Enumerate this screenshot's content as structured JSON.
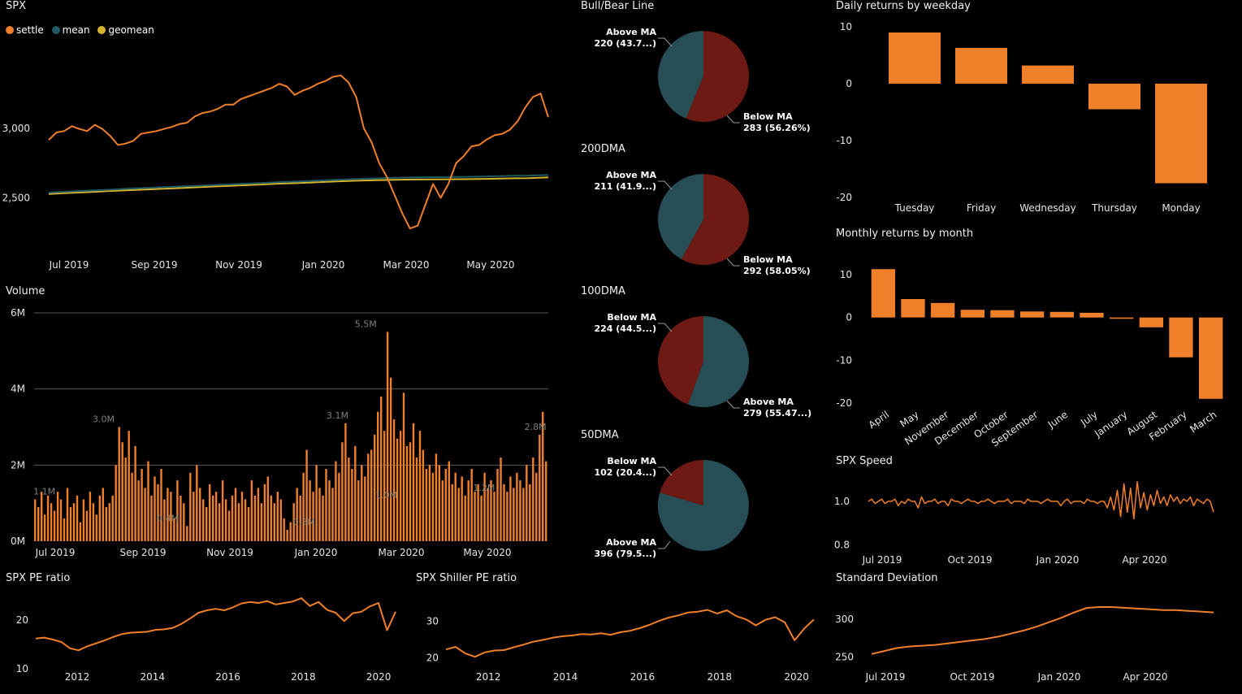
{
  "colors": {
    "orange": "#F07F2A",
    "teal": "#1F5963",
    "gold": "#D4B42C",
    "maroon": "#6E1A14",
    "pieTeal": "#274E55",
    "grid": "#5a5a5a",
    "text": "#e6e6e6",
    "muted": "#7f7f7f"
  },
  "spx": {
    "title": "SPX",
    "legend": [
      {
        "name": "settle",
        "color": "#F07F2A"
      },
      {
        "name": "mean",
        "color": "#1F5963"
      },
      {
        "name": "geomean",
        "color": "#D4B42C"
      }
    ],
    "chart_data": {
      "type": "line",
      "xlabels": [
        "Jul 2019",
        "Sep 2019",
        "Nov 2019",
        "Jan 2020",
        "Mar 2020",
        "May 2020"
      ],
      "ylabels": [
        "3,000",
        "2,500"
      ],
      "yticks": [
        3000,
        2500
      ],
      "ylim": [
        2170,
        3560
      ],
      "series": [
        {
          "name": "settle",
          "values": [
            2917,
            2970,
            2980,
            3015,
            2995,
            2980,
            3025,
            2995,
            2945,
            2880,
            2890,
            2910,
            2960,
            2970,
            2980,
            2995,
            3010,
            3030,
            3040,
            3085,
            3110,
            3120,
            3140,
            3170,
            3170,
            3210,
            3230,
            3250,
            3270,
            3290,
            3320,
            3300,
            3240,
            3270,
            3290,
            3320,
            3340,
            3370,
            3380,
            3330,
            3225,
            3000,
            2900,
            2750,
            2650,
            2520,
            2390,
            2280,
            2300,
            2450,
            2600,
            2500,
            2600,
            2750,
            2800,
            2870,
            2880,
            2920,
            2950,
            2960,
            2990,
            3050,
            3150,
            3225,
            3250,
            3080
          ]
        },
        {
          "name": "mean",
          "values": [
            2538,
            2545,
            2552,
            2558,
            2565,
            2571,
            2577,
            2583,
            2589,
            2595,
            2601,
            2607,
            2613,
            2618,
            2624,
            2630,
            2636,
            2640,
            2645,
            2647,
            2649,
            2650,
            2652,
            2655,
            2658,
            2660,
            2665
          ]
        },
        {
          "name": "geomean",
          "values": [
            2528,
            2535,
            2541,
            2548,
            2554,
            2560,
            2566,
            2572,
            2578,
            2584,
            2590,
            2596,
            2602,
            2607,
            2612,
            2618,
            2623,
            2627,
            2630,
            2632,
            2633,
            2634,
            2635,
            2637,
            2640,
            2642,
            2648
          ]
        }
      ]
    }
  },
  "volume": {
    "title": "Volume",
    "chart_data": {
      "type": "bar",
      "xlabels": [
        "Jul 2019",
        "Sep 2019",
        "Nov 2019",
        "Jan 2020",
        "Mar 2020",
        "May 2020"
      ],
      "ylabels": [
        "6M",
        "4M",
        "2M",
        "0M"
      ],
      "yticks": [
        6,
        4,
        2,
        0
      ],
      "ylim": [
        0,
        6
      ],
      "annotations": [
        {
          "text": "5.5M",
          "value": 5.5,
          "pos": 0.645
        },
        {
          "text": "3.0M",
          "value": 3.0,
          "pos": 0.135
        },
        {
          "text": "3.1M",
          "value": 3.1,
          "pos": 0.59
        },
        {
          "text": "2.8M",
          "value": 2.8,
          "pos": 0.975
        },
        {
          "text": "1.1M",
          "value": 1.1,
          "pos": 0.02
        },
        {
          "text": "0.4M",
          "value": 0.4,
          "pos": 0.26
        },
        {
          "text": "0.3M",
          "value": 0.3,
          "pos": 0.525
        },
        {
          "text": "1.2M",
          "value": 1.2,
          "pos": 0.875
        },
        {
          "text": "1.0M",
          "value": 1.0,
          "pos": 0.685
        }
      ],
      "values": [
        1.1,
        0.9,
        1.3,
        0.7,
        1.2,
        1.0,
        0.8,
        1.3,
        1.1,
        0.6,
        1.4,
        0.9,
        1.0,
        1.2,
        0.5,
        1.1,
        0.8,
        1.3,
        1.0,
        0.7,
        1.2,
        1.4,
        0.9,
        1.0,
        1.2,
        2.0,
        3.0,
        2.6,
        2.2,
        2.9,
        1.8,
        2.5,
        1.6,
        1.9,
        1.4,
        2.1,
        1.2,
        1.7,
        1.5,
        1.9,
        1.1,
        1.4,
        1.3,
        0.6,
        1.6,
        1.2,
        1.0,
        0.4,
        1.8,
        1.3,
        2.0,
        1.4,
        1.1,
        0.9,
        1.5,
        1.2,
        1.3,
        1.0,
        1.6,
        1.1,
        0.8,
        1.2,
        1.4,
        1.0,
        1.3,
        1.1,
        0.9,
        1.6,
        1.2,
        1.4,
        1.0,
        1.5,
        1.7,
        1.2,
        1.0,
        1.3,
        1.1,
        0.6,
        0.3,
        0.5,
        1.0,
        1.4,
        1.2,
        1.8,
        2.4,
        1.6,
        1.3,
        2.0,
        1.4,
        1.2,
        1.9,
        1.6,
        1.4,
        2.1,
        1.8,
        2.6,
        3.1,
        2.2,
        1.9,
        2.5,
        1.6,
        2.0,
        1.7,
        2.3,
        2.4,
        2.8,
        3.4,
        3.8,
        2.9,
        5.5,
        4.3,
        3.2,
        2.7,
        2.9,
        3.9,
        2.5,
        2.6,
        3.1,
        2.2,
        2.9,
        2.4,
        1.9,
        2.0,
        1.8,
        2.3,
        2.0,
        1.6,
        1.9,
        2.1,
        1.5,
        1.8,
        1.4,
        1.7,
        1.2,
        1.6,
        1.9,
        1.3,
        1.5,
        1.2,
        1.8,
        1.4,
        1.6,
        1.3,
        1.9,
        2.2,
        1.5,
        1.3,
        1.7,
        1.4,
        1.8,
        1.6,
        1.4,
        2.0,
        1.5,
        2.2,
        1.8,
        2.8,
        3.4,
        2.1
      ]
    }
  },
  "pies": [
    {
      "title": "Bull/Bear Line",
      "chart_data": {
        "type": "pie",
        "slices": [
          {
            "label": "Above MA",
            "value": 220,
            "text": "220 (43.7...)",
            "color": "#274E55",
            "side": "left"
          },
          {
            "label": "Below MA",
            "value": 283,
            "text": "283 (56.26%)",
            "color": "#6E1A14",
            "side": "right"
          }
        ]
      }
    },
    {
      "title": "200DMA",
      "chart_data": {
        "type": "pie",
        "slices": [
          {
            "label": "Above MA",
            "value": 211,
            "text": "211 (41.9...)",
            "color": "#274E55",
            "side": "left"
          },
          {
            "label": "Below MA",
            "value": 292,
            "text": "292 (58.05%)",
            "color": "#6E1A14",
            "side": "right"
          }
        ]
      }
    },
    {
      "title": "100DMA",
      "chart_data": {
        "type": "pie",
        "slices": [
          {
            "label": "Below MA",
            "value": 224,
            "text": "224 (44.5...)",
            "color": "#6E1A14",
            "side": "left"
          },
          {
            "label": "Above MA",
            "value": 279,
            "text": "279 (55.47...)",
            "color": "#274E55",
            "side": "right"
          }
        ]
      }
    },
    {
      "title": "50DMA",
      "chart_data": {
        "type": "pie",
        "slices": [
          {
            "label": "Below MA",
            "value": 102,
            "text": "102 (20.4...)",
            "color": "#6E1A14",
            "side": "left"
          },
          {
            "label": "Above MA",
            "value": 396,
            "text": "396 (79.5...)",
            "color": "#274E55",
            "side": "left-bottom"
          }
        ]
      }
    }
  ],
  "weekday": {
    "title": "Daily returns by weekday",
    "chart_data": {
      "type": "bar",
      "categories": [
        "Tuesday",
        "Friday",
        "Wednesday",
        "Thursday",
        "Monday"
      ],
      "values": [
        9,
        6.3,
        3.2,
        -4.5,
        -17.5
      ],
      "ylim": [
        -20,
        10
      ],
      "yticks": [
        10,
        0,
        -10,
        -20
      ],
      "ylabels": [
        "10",
        "0",
        "-10",
        "-20"
      ]
    }
  },
  "monthly": {
    "title": "Monthly returns by month",
    "chart_data": {
      "type": "bar",
      "categories": [
        "April",
        "May",
        "November",
        "December",
        "October",
        "September",
        "June",
        "July",
        "January",
        "August",
        "February",
        "March"
      ],
      "values": [
        11.3,
        4.3,
        3.4,
        1.8,
        1.7,
        1.4,
        1.3,
        1.1,
        -0.3,
        -2.3,
        -9.3,
        -19
      ],
      "ylim": [
        -20,
        10
      ],
      "yticks": [
        10,
        0,
        -10,
        -20
      ],
      "ylabels": [
        "10",
        "0",
        "-10",
        "-20"
      ]
    }
  },
  "speed": {
    "title": "SPX Speed",
    "chart_data": {
      "type": "line",
      "xlabels": [
        "Jul 2019",
        "Oct 2019",
        "Jan 2020",
        "Apr 2020"
      ],
      "ylabels": [
        "1.0",
        "0.8"
      ],
      "yticks": [
        1.0,
        0.8
      ],
      "ylim": [
        0.78,
        1.1
      ],
      "values": [
        1.0,
        1.01,
        0.99,
        1.0,
        1.01,
        0.99,
        1.0,
        1.0,
        1.01,
        0.98,
        1.0,
        0.99,
        1.01,
        1.0,
        1.0,
        0.97,
        1.02,
        0.99,
        1.0,
        1.0,
        1.01,
        0.99,
        1.0,
        1.0,
        0.98,
        1.01,
        1.0,
        1.0,
        0.99,
        1.0,
        1.01,
        1.0,
        1.0,
        0.99,
        1.0,
        1.0,
        1.01,
        1.0,
        0.99,
        1.0,
        1.0,
        1.0,
        1.01,
        0.99,
        1.0,
        1.0,
        1.0,
        0.99,
        1.01,
        1.0,
        1.0,
        1.0,
        0.99,
        1.0,
        1.01,
        1.0,
        1.0,
        1.0,
        0.98,
        1.0,
        1.01,
        0.99,
        1.0,
        1.0,
        1.0,
        0.99,
        1.01,
        1.0,
        1.0,
        0.99,
        1.0,
        1.0,
        0.97,
        1.02,
        0.96,
        1.05,
        0.93,
        1.08,
        0.95,
        1.06,
        0.92,
        1.09,
        0.97,
        1.04,
        0.96,
        1.03,
        0.98,
        1.05,
        0.99,
        1.02,
        0.98,
        1.03,
        1.0,
        1.02,
        0.99,
        1.01,
        1.0,
        1.02,
        0.98,
        1.01,
        1.0,
        0.99,
        1.01,
        1.0,
        0.95
      ]
    }
  },
  "pe": {
    "title": "SPX PE ratio",
    "chart_data": {
      "type": "line",
      "xlabels": [
        "2012",
        "2014",
        "2016",
        "2018",
        "2020"
      ],
      "xticks": [
        2012,
        2014,
        2016,
        2018,
        2020
      ],
      "xlim": [
        2010.9,
        2020.45
      ],
      "ylabels": [
        "20",
        "10"
      ],
      "yticks": [
        20,
        10
      ],
      "ylim": [
        8.5,
        26.5
      ],
      "values": [
        16.2,
        16.4,
        16.0,
        15.5,
        14.2,
        13.8,
        14.6,
        15.2,
        15.8,
        16.5,
        17.1,
        17.4,
        17.5,
        17.6,
        18.0,
        18.1,
        18.4,
        19.2,
        20.3,
        21.5,
        22.0,
        22.3,
        22.0,
        22.6,
        23.4,
        23.7,
        23.5,
        23.9,
        23.2,
        23.5,
        23.8,
        24.5,
        22.9,
        23.7,
        22.1,
        21.5,
        19.8,
        21.4,
        21.7,
        22.8,
        23.5,
        17.9,
        21.7
      ]
    }
  },
  "shiller": {
    "title": "SPX Shiller PE ratio",
    "chart_data": {
      "type": "line",
      "xlabels": [
        "2012",
        "2014",
        "2016",
        "2018",
        "2020"
      ],
      "xticks": [
        2012,
        2014,
        2016,
        2018,
        2020
      ],
      "xlim": [
        2010.9,
        2020.45
      ],
      "ylabels": [
        "30",
        "20"
      ],
      "yticks": [
        30,
        20
      ],
      "ylim": [
        15,
        39
      ],
      "values": [
        22.3,
        23.0,
        21.2,
        20.3,
        21.5,
        22.0,
        22.1,
        22.9,
        23.6,
        24.4,
        24.9,
        25.5,
        25.9,
        26.1,
        26.5,
        26.4,
        26.7,
        26.3,
        27.0,
        27.4,
        28.1,
        29.0,
        30.1,
        31.0,
        31.6,
        32.4,
        32.6,
        33.1,
        32.1,
        33.0,
        31.4,
        30.5,
        28.9,
        30.4,
        31.1,
        29.7,
        24.8,
        28.0,
        30.5
      ]
    }
  },
  "std": {
    "title": "Standard Deviation",
    "chart_data": {
      "type": "line",
      "xlabels": [
        "Jul 2019",
        "Oct 2019",
        "Jan 2020",
        "Apr 2020"
      ],
      "ylabels": [
        "300",
        "250"
      ],
      "yticks": [
        300,
        250
      ],
      "ylim": [
        242,
        330
      ],
      "values": [
        254,
        258,
        262,
        264,
        265,
        266,
        268,
        270,
        272,
        274,
        277,
        281,
        285,
        290,
        296,
        302,
        309,
        315,
        316,
        316,
        315,
        314,
        313,
        312,
        312,
        311,
        310,
        309
      ]
    }
  }
}
